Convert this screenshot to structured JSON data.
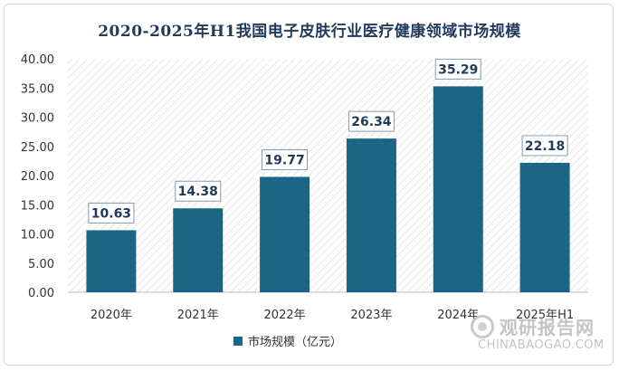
{
  "chart_data": {
    "type": "bar",
    "title": "2020-2025年H1我国电子皮肤行业医疗健康领域市场规模",
    "categories": [
      "2020年",
      "2021年",
      "2022年",
      "2023年",
      "2024年",
      "2025年H1"
    ],
    "series": [
      {
        "name": "市场规模（亿元）",
        "values": [
          10.63,
          14.38,
          19.77,
          26.34,
          35.29,
          22.18
        ]
      }
    ],
    "data_labels": [
      "10.63",
      "14.38",
      "19.77",
      "26.34",
      "35.29",
      "22.18"
    ],
    "y_ticks": [
      "0.00",
      "5.00",
      "10.00",
      "15.00",
      "20.00",
      "25.00",
      "30.00",
      "35.00",
      "40.00"
    ],
    "ylim": [
      0,
      40
    ],
    "legend_position": "bottom",
    "grid": false,
    "bar_color": "#1b6686"
  },
  "watermark": {
    "name": "观研报告网",
    "url": "CHINABAOGAO.COM"
  }
}
